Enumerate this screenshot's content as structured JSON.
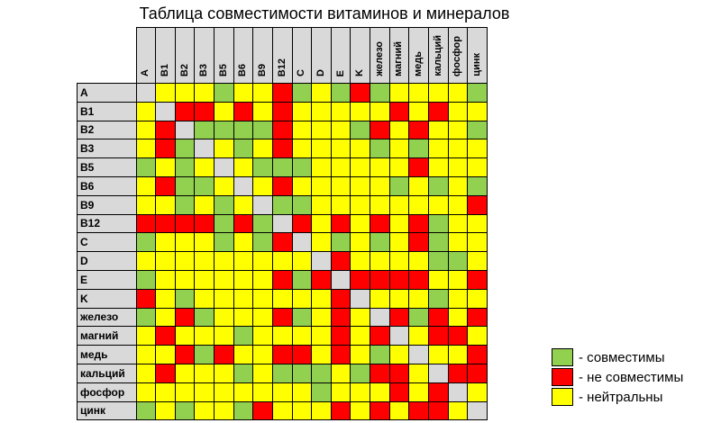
{
  "title": "Таблица совместимости витаминов и минералов",
  "chart_data": {
    "type": "heatmap",
    "title": "Таблица совместимости витаминов и минералов",
    "categories": [
      "A",
      "B1",
      "B2",
      "B3",
      "B5",
      "B6",
      "B9",
      "B12",
      "C",
      "D",
      "E",
      "K",
      "железо",
      "магний",
      "медь",
      "кальций",
      "фосфор",
      "цинк"
    ],
    "value_meanings": {
      "G": "совместимы",
      "R": "не совместимы",
      "Y": "нейтральны",
      "X": "одно и то же вещество (диагональ)"
    },
    "cell_colors": {
      "G": "#92d050",
      "R": "#ff0000",
      "Y": "#ffff00",
      "X": "#d9d9d9"
    },
    "matrix": [
      "XYYYGYYRGYGRGYYYYG",
      "YXRRYRYRYYYYYRYRYY",
      "YRXGGGGRYYYGRYRYYG",
      "YRGXYGYRYYYYGYGYYY",
      "GYGYXYGGGYYYYYRYYY",
      "YRGGYXYRYYYYYGYGYG",
      "YYGYGYXGGYYYYYYYYR",
      "RRRRGRGXRYRYRYRGYY",
      "GYYYGYGRXYGYGYRGYY",
      "YYYYYYYYYXRYYYYGGY",
      "GYYYYYYRGRXRRRRYYR",
      "RYGYYYYYYYRXYYYGYY",
      "GYRGYYYRGYRYXRGRYR",
      "YRYYYGYYYYRYRXYRRY",
      "YYRGRYYRRYRYGYXYYR",
      "YRYYYGYGGGYGRRYXRR",
      "YYYYYYYYYGYYYRYRXY",
      "GYGYYGRYYYRYRYRRYX"
    ],
    "legend": [
      {
        "key": "G",
        "color": "#92d050",
        "label": "- совместимы"
      },
      {
        "key": "R",
        "color": "#ff0000",
        "label": "- не совместимы"
      },
      {
        "key": "Y",
        "color": "#ffff00",
        "label": "- нейтральны"
      }
    ],
    "layout": {
      "legend_position": "bottom-right",
      "grid": true,
      "header_orientation": "vertical-bottom-up"
    }
  }
}
